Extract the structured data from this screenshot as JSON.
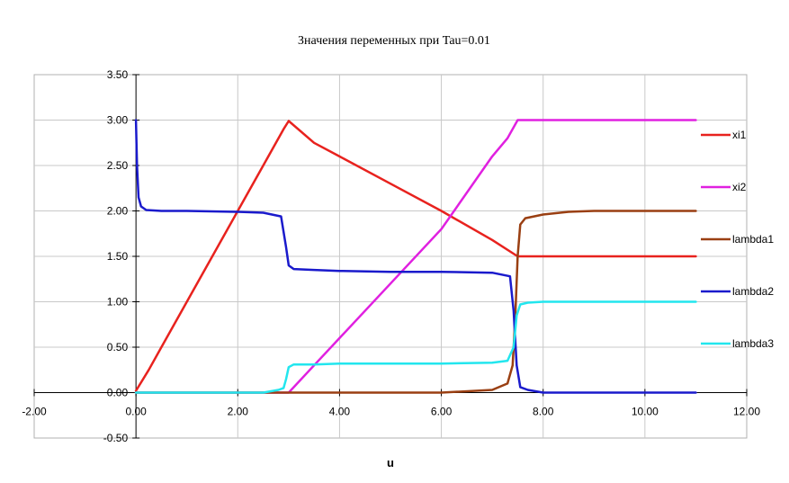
{
  "chart_data": {
    "type": "line",
    "title": "Значения переменных при Tau=0.01",
    "xlabel": "u",
    "ylabel": "",
    "xlim": [
      -2.0,
      12.0
    ],
    "ylim": [
      -0.5,
      3.5
    ],
    "x_ticks": [
      "-2.00",
      "0.00",
      "2.00",
      "4.00",
      "6.00",
      "8.00",
      "10.00",
      "12.00"
    ],
    "y_ticks": [
      "3.50",
      "3.00",
      "2.50",
      "2.00",
      "1.50",
      "1.00",
      "0.50",
      "0.00",
      "-0.50"
    ],
    "x_tick_values": [
      -2,
      0,
      2,
      4,
      6,
      8,
      10,
      12
    ],
    "y_tick_values": [
      3.5,
      3.0,
      2.5,
      2.0,
      1.5,
      1.0,
      0.5,
      0.0,
      -0.5
    ],
    "grid": true,
    "legend_position": "right",
    "series": [
      {
        "name": "xi1",
        "color": "#e8221e",
        "x": [
          0.0,
          0.25,
          0.5,
          1.0,
          1.5,
          2.0,
          2.5,
          2.9,
          3.0,
          3.5,
          4.0,
          5.0,
          6.0,
          7.0,
          7.5,
          8.0,
          9.0,
          10.0,
          11.0
        ],
        "y": [
          0.02,
          0.25,
          0.5,
          1.0,
          1.5,
          2.0,
          2.5,
          2.9,
          2.99,
          2.75,
          2.6,
          2.3,
          2.0,
          1.68,
          1.5,
          1.5,
          1.5,
          1.5,
          1.5
        ]
      },
      {
        "name": "xi2",
        "color": "#e020e0",
        "x": [
          0.0,
          2.9,
          3.0,
          3.5,
          4.0,
          5.0,
          6.0,
          7.0,
          7.3,
          7.5,
          8.0,
          9.0,
          10.0,
          11.0
        ],
        "y": [
          0.0,
          0.0,
          0.0,
          0.3,
          0.6,
          1.2,
          1.8,
          2.6,
          2.8,
          3.0,
          3.0,
          3.0,
          3.0,
          3.0
        ]
      },
      {
        "name": "lambda1",
        "color": "#9a3f12",
        "x": [
          0.0,
          3.0,
          6.0,
          7.0,
          7.3,
          7.4,
          7.45,
          7.5,
          7.55,
          7.65,
          8.0,
          8.5,
          9.0,
          10.0,
          11.0
        ],
        "y": [
          0.0,
          0.0,
          0.0,
          0.03,
          0.1,
          0.3,
          0.8,
          1.5,
          1.85,
          1.92,
          1.96,
          1.99,
          2.0,
          2.0,
          2.0
        ]
      },
      {
        "name": "lambda2",
        "color": "#1a1acc",
        "x": [
          0.0,
          0.02,
          0.05,
          0.1,
          0.2,
          0.5,
          1.0,
          2.0,
          2.5,
          2.85,
          2.95,
          3.0,
          3.1,
          3.5,
          4.0,
          5.0,
          6.0,
          7.0,
          7.35,
          7.42,
          7.48,
          7.55,
          7.7,
          8.0,
          9.0,
          10.0,
          11.0
        ],
        "y": [
          3.0,
          2.5,
          2.15,
          2.05,
          2.01,
          2.0,
          2.0,
          1.99,
          1.98,
          1.94,
          1.6,
          1.4,
          1.36,
          1.35,
          1.34,
          1.33,
          1.33,
          1.32,
          1.28,
          0.9,
          0.3,
          0.06,
          0.03,
          0.0,
          0.0,
          0.0,
          0.0
        ]
      },
      {
        "name": "lambda3",
        "color": "#22e6ee",
        "x": [
          0.0,
          2.0,
          2.5,
          2.8,
          2.9,
          2.95,
          3.0,
          3.1,
          3.5,
          4.0,
          5.0,
          6.0,
          7.0,
          7.3,
          7.42,
          7.48,
          7.55,
          7.7,
          8.0,
          9.0,
          10.0,
          11.0
        ],
        "y": [
          0.0,
          0.0,
          0.0,
          0.03,
          0.05,
          0.15,
          0.28,
          0.31,
          0.31,
          0.32,
          0.32,
          0.32,
          0.33,
          0.35,
          0.5,
          0.85,
          0.97,
          0.99,
          1.0,
          1.0,
          1.0,
          1.0
        ]
      }
    ]
  }
}
